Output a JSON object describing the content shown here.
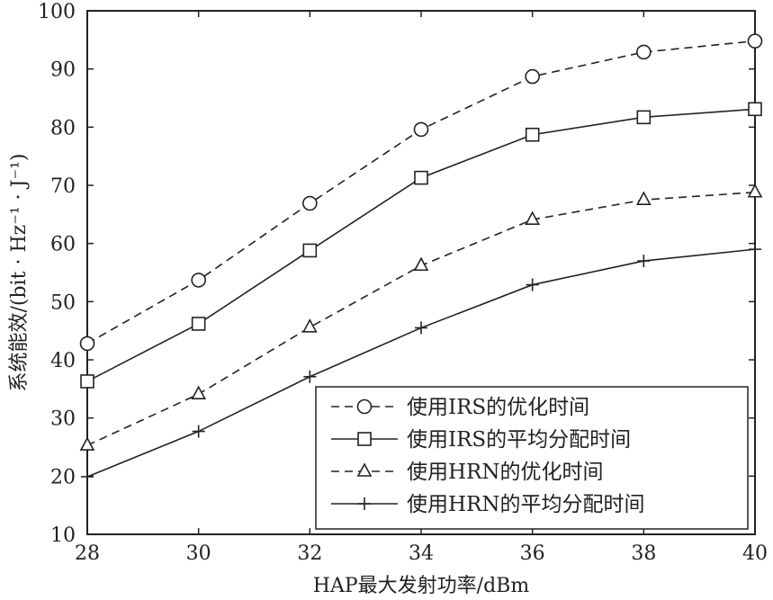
{
  "chart_data": {
    "type": "line",
    "xlabel": "HAP最大发射功率/dBm",
    "ylabel": "系统能效/(bit · Hz⁻¹ · J⁻¹)",
    "xlim": [
      28,
      40
    ],
    "ylim": [
      10,
      100
    ],
    "x": [
      28,
      30,
      32,
      34,
      36,
      38,
      40
    ],
    "x_ticks": [
      "28",
      "30",
      "32",
      "34",
      "36",
      "38",
      "40"
    ],
    "y_ticks": [
      "10",
      "20",
      "30",
      "40",
      "50",
      "60",
      "70",
      "80",
      "90",
      "100"
    ],
    "grid": false,
    "legend_position": "bottom-right",
    "series": [
      {
        "name": "使用IRS的优化时间",
        "marker": "circle",
        "line": "dashed",
        "values": [
          42.8,
          53.7,
          66.9,
          79.6,
          88.7,
          92.9,
          94.8
        ]
      },
      {
        "name": "使用IRS的平均分配时间",
        "marker": "square",
        "line": "solid",
        "values": [
          36.3,
          46.2,
          58.8,
          71.3,
          78.7,
          81.7,
          83.1
        ]
      },
      {
        "name": "使用HRN的优化时间",
        "marker": "triangle",
        "line": "dashed",
        "values": [
          25.3,
          34.1,
          45.6,
          56.2,
          64.1,
          67.5,
          68.8
        ]
      },
      {
        "name": "使用HRN的平均分配时间",
        "marker": "plus",
        "line": "solid",
        "values": [
          19.9,
          27.7,
          37.1,
          45.5,
          52.9,
          57.0,
          59.0
        ]
      }
    ]
  }
}
